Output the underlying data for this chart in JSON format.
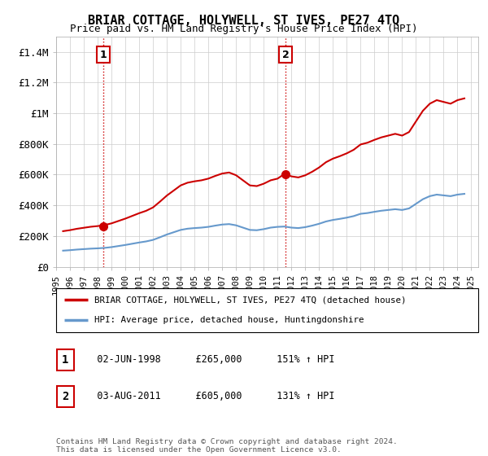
{
  "title": "BRIAR COTTAGE, HOLYWELL, ST IVES, PE27 4TQ",
  "subtitle": "Price paid vs. HM Land Registry's House Price Index (HPI)",
  "hpi_label": "HPI: Average price, detached house, Huntingdonshire",
  "property_label": "BRIAR COTTAGE, HOLYWELL, ST IVES, PE27 4TQ (detached house)",
  "sale1_date": "02-JUN-1998",
  "sale1_price": 265000,
  "sale1_hpi": "151% ↑ HPI",
  "sale2_date": "03-AUG-2011",
  "sale2_price": 605000,
  "sale2_hpi": "131% ↑ HPI",
  "footer": "Contains HM Land Registry data © Crown copyright and database right 2024.\nThis data is licensed under the Open Government Licence v3.0.",
  "ylim": [
    0,
    1500000
  ],
  "yticks": [
    0,
    200000,
    400000,
    600000,
    800000,
    1000000,
    1200000,
    1400000
  ],
  "ytick_labels": [
    "£0",
    "£200K",
    "£400K",
    "£600K",
    "£800K",
    "£1M",
    "£1.2M",
    "£1.4M"
  ],
  "property_color": "#cc0000",
  "hpi_color": "#6699cc",
  "grid_color": "#cccccc",
  "background_color": "#ffffff",
  "vline_color": "#cc0000",
  "annotation_border_color": "#cc0000"
}
